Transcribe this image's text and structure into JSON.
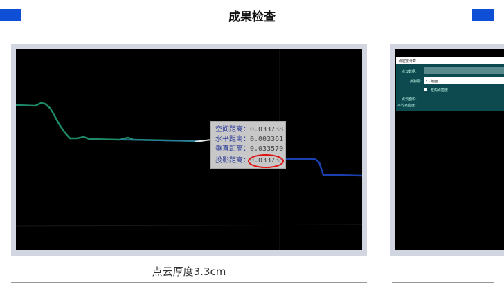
{
  "header": {
    "title": "成果检查"
  },
  "card1": {
    "caption": "点云厚度3.3cm",
    "tooltip": {
      "rows": [
        {
          "label": "空间距离：",
          "value": "0.033738"
        },
        {
          "label": "水平距离：",
          "value": "0.003361"
        },
        {
          "label": "垂直距离：",
          "value": "0.033570"
        },
        {
          "label": "投影距离：",
          "value": "0.033738"
        }
      ],
      "highlight_color": "#e01010"
    }
  },
  "card2": {
    "dialog": {
      "title": "点密度计算",
      "pointcloud_label": "点云数据:",
      "class_label": "类别号:",
      "class_value": "2 - 地面",
      "checkbox_label": "框内点密度",
      "area_label": "点云面积:",
      "density_label": "平均点密度:"
    }
  },
  "colors": {
    "accent": "#0f4fd6",
    "frame": "#d1d6e0",
    "dialog": "#0c4a50"
  }
}
